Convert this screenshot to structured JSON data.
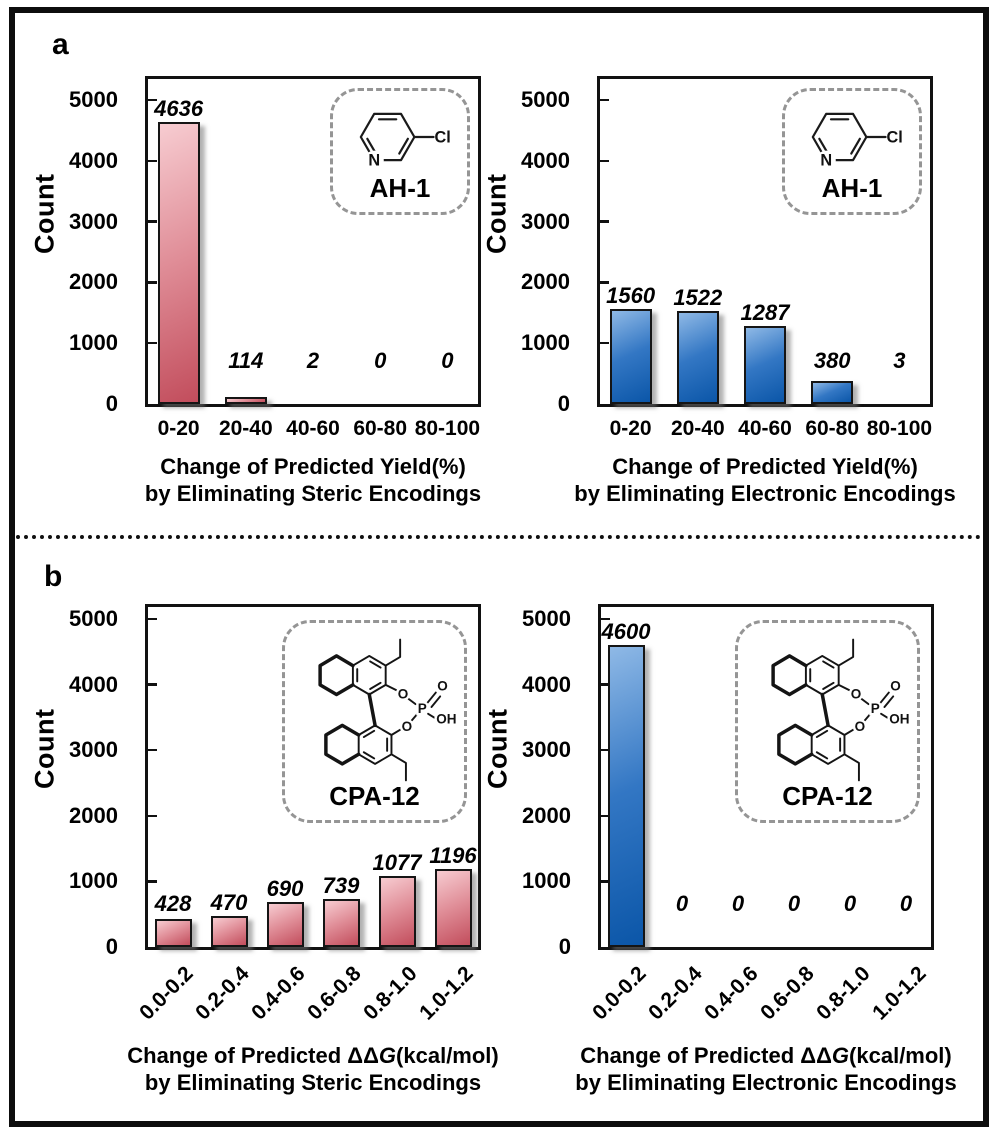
{
  "figure": {
    "panel_a": "a",
    "panel_b": "b"
  },
  "colors": {
    "red_light": "#f7ccd1",
    "red_mid": "#e08e98",
    "red_dark": "#c24d5c",
    "blue_light": "#8fb9e6",
    "blue_mid": "#3377c4",
    "blue_dark": "#0b56a8",
    "bar_border": "#151515",
    "frame": "#111111",
    "inset_border": "#959595",
    "text": "#000000"
  },
  "chart_data": [
    {
      "id": "yield-steric",
      "type": "bar",
      "panel": "a",
      "series_color": "red",
      "ylabel": "Count",
      "ylim": [
        0,
        5000
      ],
      "yticks": [
        0,
        1000,
        2000,
        3000,
        4000,
        5000
      ],
      "categories": [
        "0-20",
        "20-40",
        "40-60",
        "60-80",
        "80-100"
      ],
      "values": [
        4636,
        114,
        2,
        0,
        0
      ],
      "xlabel_line1": "Change of Predicted Yield(%)",
      "xlabel_line2": "by Eliminating Steric Encodings",
      "xticks_rotated": false,
      "grid": false,
      "legend": false,
      "inset": {
        "molecule": "ah1",
        "label": "AH-1"
      }
    },
    {
      "id": "yield-electronic",
      "type": "bar",
      "panel": "a",
      "series_color": "blue",
      "ylabel": "Count",
      "ylim": [
        0,
        5000
      ],
      "yticks": [
        0,
        1000,
        2000,
        3000,
        4000,
        5000
      ],
      "categories": [
        "0-20",
        "20-40",
        "40-60",
        "60-80",
        "80-100"
      ],
      "values": [
        1560,
        1522,
        1287,
        380,
        3
      ],
      "xlabel_line1": "Change of Predicted Yield(%)",
      "xlabel_line2": "by Eliminating Electronic Encodings",
      "xticks_rotated": false,
      "grid": false,
      "legend": false,
      "inset": {
        "molecule": "ah1",
        "label": "AH-1"
      }
    },
    {
      "id": "ddg-steric",
      "type": "bar",
      "panel": "b",
      "series_color": "red",
      "ylabel": "Count",
      "ylim": [
        0,
        5000
      ],
      "yticks": [
        0,
        1000,
        2000,
        3000,
        4000,
        5000
      ],
      "categories": [
        "0.0-0.2",
        "0.2-0.4",
        "0.4-0.6",
        "0.6-0.8",
        "0.8-1.0",
        "1.0-1.2"
      ],
      "values": [
        428,
        470,
        690,
        739,
        1077,
        1196
      ],
      "xlabel_line1": "Change of Predicted ΔΔG(kcal/mol)",
      "xlabel_line2": "by Eliminating Steric Encodings",
      "xticks_rotated": true,
      "grid": false,
      "legend": false,
      "inset": {
        "molecule": "cpa12",
        "label": "CPA-12"
      }
    },
    {
      "id": "ddg-electronic",
      "type": "bar",
      "panel": "b",
      "series_color": "blue",
      "ylabel": "Count",
      "ylim": [
        0,
        5000
      ],
      "yticks": [
        0,
        1000,
        2000,
        3000,
        4000,
        5000
      ],
      "categories": [
        "0.0-0.2",
        "0.2-0.4",
        "0.4-0.6",
        "0.6-0.8",
        "0.8-1.0",
        "1.0-1.2"
      ],
      "values": [
        4600,
        0,
        0,
        0,
        0,
        0
      ],
      "xlabel_line1": "Change of Predicted ΔΔG(kcal/mol)",
      "xlabel_line2": "by Eliminating Electronic Encodings",
      "xticks_rotated": true,
      "grid": false,
      "legend": false,
      "inset": {
        "molecule": "cpa12",
        "label": "CPA-12"
      }
    }
  ]
}
